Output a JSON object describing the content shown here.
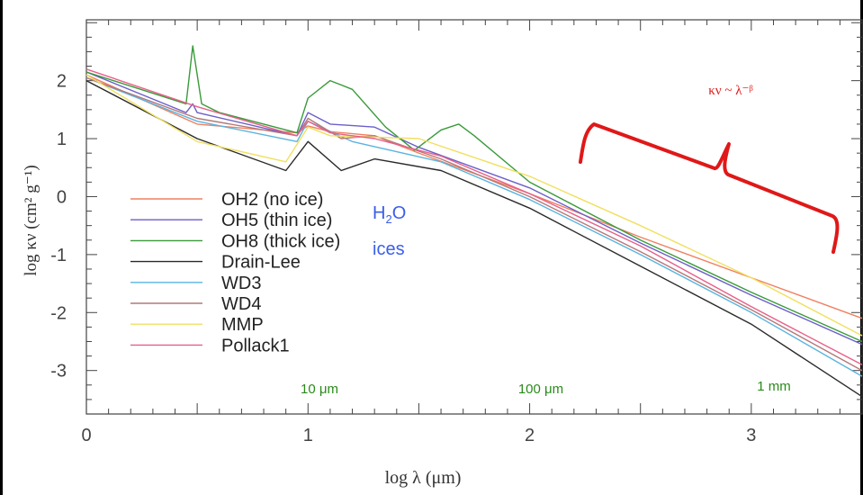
{
  "chart_data": {
    "type": "line",
    "xlabel": "log λ (μm)",
    "ylabel": "log κν (cm² g⁻¹)",
    "xlim": [
      0,
      3.5
    ],
    "ylim": [
      -3.75,
      3.05
    ],
    "x_ticks": [
      "0",
      "1",
      "2",
      "3"
    ],
    "y_ticks": [
      "2",
      "1",
      "0",
      "-1",
      "-2",
      "-3"
    ],
    "legend_placement": "lower-left",
    "series": [
      {
        "name": "OH2 (no ice)",
        "color": "#ef8060",
        "points": [
          [
            0,
            2.1
          ],
          [
            0.5,
            1.25
          ],
          [
            0.95,
            1.1
          ],
          [
            1.0,
            1.22
          ],
          [
            1.1,
            1.12
          ],
          [
            1.3,
            1.05
          ],
          [
            1.5,
            0.75
          ],
          [
            2.0,
            0.05
          ],
          [
            2.5,
            -0.7
          ],
          [
            3.0,
            -1.4
          ],
          [
            3.5,
            -2.1
          ]
        ]
      },
      {
        "name": "OH5 (thin ice)",
        "color": "#6a5fc8",
        "points": [
          [
            0,
            2.15
          ],
          [
            0.45,
            1.45
          ],
          [
            0.48,
            1.6
          ],
          [
            0.5,
            1.45
          ],
          [
            0.95,
            1.05
          ],
          [
            1.0,
            1.45
          ],
          [
            1.1,
            1.25
          ],
          [
            1.3,
            1.2
          ],
          [
            1.5,
            0.85
          ],
          [
            2.0,
            0.15
          ],
          [
            2.5,
            -0.8
          ],
          [
            3.0,
            -1.7
          ],
          [
            3.5,
            -2.55
          ]
        ]
      },
      {
        "name": "OH8 (thick ice)",
        "color": "#3a9a3a",
        "points": [
          [
            0,
            2.15
          ],
          [
            0.45,
            1.6
          ],
          [
            0.48,
            2.6
          ],
          [
            0.52,
            1.6
          ],
          [
            0.6,
            1.45
          ],
          [
            0.95,
            1.1
          ],
          [
            1.0,
            1.7
          ],
          [
            1.1,
            2.0
          ],
          [
            1.2,
            1.85
          ],
          [
            1.35,
            1.2
          ],
          [
            1.48,
            0.8
          ],
          [
            1.6,
            1.15
          ],
          [
            1.68,
            1.25
          ],
          [
            1.75,
            1.05
          ],
          [
            2.0,
            0.25
          ],
          [
            2.5,
            -0.75
          ],
          [
            3.0,
            -1.65
          ],
          [
            3.5,
            -2.5
          ]
        ]
      },
      {
        "name": "Drain-Lee",
        "color": "#2a2a2a",
        "points": [
          [
            0,
            2.0
          ],
          [
            0.5,
            1.0
          ],
          [
            0.9,
            0.45
          ],
          [
            1.0,
            0.95
          ],
          [
            1.15,
            0.45
          ],
          [
            1.3,
            0.65
          ],
          [
            1.6,
            0.45
          ],
          [
            2.0,
            -0.2
          ],
          [
            2.5,
            -1.2
          ],
          [
            3.0,
            -2.2
          ],
          [
            3.5,
            -3.45
          ]
        ]
      },
      {
        "name": "WD3",
        "color": "#5ab4e0",
        "points": [
          [
            0,
            2.05
          ],
          [
            0.5,
            1.3
          ],
          [
            0.95,
            0.95
          ],
          [
            1.0,
            1.3
          ],
          [
            1.2,
            0.95
          ],
          [
            1.6,
            0.6
          ],
          [
            2.0,
            -0.05
          ],
          [
            2.5,
            -1.0
          ],
          [
            3.0,
            -2.0
          ],
          [
            3.5,
            -3.1
          ]
        ]
      },
      {
        "name": "WD4",
        "color": "#b47878",
        "points": [
          [
            0,
            2.05
          ],
          [
            0.5,
            1.35
          ],
          [
            0.95,
            1.05
          ],
          [
            1.0,
            1.35
          ],
          [
            1.15,
            1.0
          ],
          [
            1.3,
            1.05
          ],
          [
            1.6,
            0.65
          ],
          [
            2.0,
            0.0
          ],
          [
            2.5,
            -0.95
          ],
          [
            3.0,
            -1.95
          ],
          [
            3.5,
            -3.0
          ]
        ]
      },
      {
        "name": "MMP",
        "color": "#f0e060",
        "points": [
          [
            0,
            2.1
          ],
          [
            0.5,
            0.95
          ],
          [
            0.9,
            0.6
          ],
          [
            1.0,
            1.2
          ],
          [
            1.1,
            1.05
          ],
          [
            1.5,
            1.0
          ],
          [
            2.0,
            0.35
          ],
          [
            2.5,
            -0.5
          ],
          [
            3.0,
            -1.4
          ],
          [
            3.5,
            -2.4
          ]
        ]
      },
      {
        "name": "Pollack1",
        "color": "#e8608a",
        "points": [
          [
            0,
            2.2
          ],
          [
            0.5,
            1.55
          ],
          [
            0.95,
            1.05
          ],
          [
            1.0,
            1.3
          ],
          [
            1.1,
            1.1
          ],
          [
            1.3,
            1.0
          ],
          [
            1.6,
            0.7
          ],
          [
            2.0,
            0.05
          ],
          [
            2.5,
            -0.85
          ],
          [
            3.0,
            -1.9
          ],
          [
            3.5,
            -2.9
          ]
        ]
      }
    ],
    "annotations": {
      "water_ices_label_main": "H",
      "water_ices_label_sub": "2",
      "water_ices_label_end": "O",
      "water_ices_label_line2": "ices",
      "wavelength_10um": "10 μm",
      "wavelength_100um": "100 μm",
      "wavelength_1mm": "1 mm",
      "power_law": "κν ~ λ⁻ᵝ"
    }
  },
  "colors": {
    "annotation_blue": "#3a5ee8",
    "annotation_green": "#2a8a1a",
    "annotation_red": "#e01818"
  }
}
